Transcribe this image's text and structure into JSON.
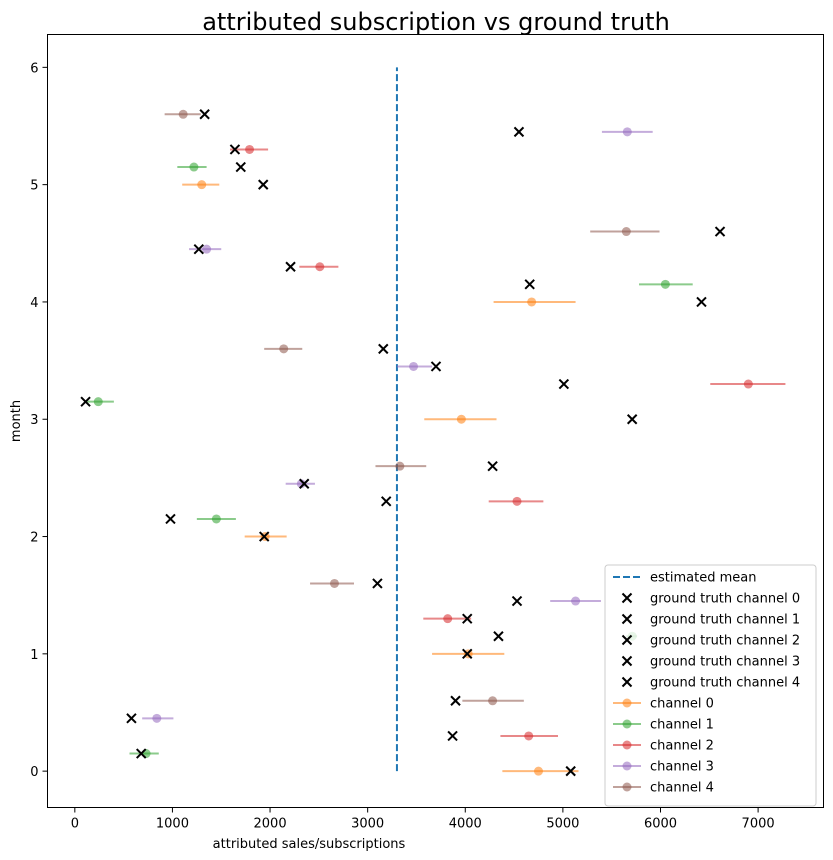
{
  "chart_data": {
    "type": "scatter",
    "title": "attributed subscription vs ground truth",
    "xlabel": "attributed sales/subscriptions",
    "ylabel": "month",
    "xlim": [
      -280,
      7670
    ],
    "ylim": [
      -0.31,
      6.28
    ],
    "xticks": [
      0,
      1000,
      2000,
      3000,
      4000,
      5000,
      6000,
      7000
    ],
    "yticks": [
      0,
      1,
      2,
      3,
      4,
      5,
      6
    ],
    "grid": false,
    "legend_position": "lower-right",
    "estimated_mean": {
      "name": "estimated mean",
      "x": 3300,
      "y": [
        0,
        6
      ],
      "color": "#1f77b4"
    },
    "colors": [
      "#ff7f0e",
      "#2ca02c",
      "#d62728",
      "#9467bd",
      "#8c564b"
    ],
    "ground_truth": [
      {
        "name": "ground truth channel 0",
        "points": [
          [
            5080,
            0
          ],
          [
            4020,
            1.0
          ],
          [
            1940,
            2.0
          ],
          [
            5710,
            3.0
          ],
          [
            6420,
            4.0
          ],
          [
            1930,
            5.0
          ]
        ]
      },
      {
        "name": "ground truth channel 1",
        "points": [
          [
            680,
            0.15
          ],
          [
            4340,
            1.15
          ],
          [
            980,
            2.15
          ],
          [
            110,
            3.15
          ],
          [
            4660,
            4.15
          ],
          [
            1700,
            5.15
          ]
        ]
      },
      {
        "name": "ground truth channel 2",
        "points": [
          [
            3870,
            0.3
          ],
          [
            4020,
            1.3
          ],
          [
            3190,
            2.3
          ],
          [
            5010,
            3.3
          ],
          [
            2210,
            4.3
          ],
          [
            1640,
            5.3
          ]
        ]
      },
      {
        "name": "ground truth channel 3",
        "points": [
          [
            580,
            0.45
          ],
          [
            4530,
            1.45
          ],
          [
            2350,
            2.45
          ],
          [
            3700,
            3.45
          ],
          [
            1270,
            4.45
          ],
          [
            4550,
            5.45
          ]
        ]
      },
      {
        "name": "ground truth channel 4",
        "points": [
          [
            3900,
            0.6
          ],
          [
            3100,
            1.6
          ],
          [
            4280,
            2.6
          ],
          [
            3160,
            3.6
          ],
          [
            6610,
            4.6
          ],
          [
            1330,
            5.6
          ]
        ]
      }
    ],
    "series": [
      {
        "name": "channel 0",
        "points": [
          [
            4750,
            0,
            4380,
            5160
          ],
          [
            4030,
            1.0,
            3660,
            4400
          ],
          [
            1950,
            2.0,
            1740,
            2170
          ],
          [
            3960,
            3.0,
            3580,
            4320
          ],
          [
            4680,
            4.0,
            4290,
            5130
          ],
          [
            1300,
            5.0,
            1100,
            1480
          ]
        ]
      },
      {
        "name": "channel 1",
        "points": [
          [
            730,
            0.15,
            560,
            860
          ],
          [
            5710,
            1.15,
            5650,
            5760
          ],
          [
            1450,
            2.15,
            1250,
            1650
          ],
          [
            240,
            3.15,
            120,
            400
          ],
          [
            6050,
            4.15,
            5780,
            6330
          ],
          [
            1220,
            5.15,
            1050,
            1350
          ]
        ]
      },
      {
        "name": "channel 2",
        "points": [
          [
            4650,
            0.3,
            4360,
            4950
          ],
          [
            3820,
            1.3,
            3570,
            4060
          ],
          [
            4530,
            2.3,
            4240,
            4800
          ],
          [
            6900,
            3.3,
            6510,
            7280
          ],
          [
            2510,
            4.3,
            2300,
            2700
          ],
          [
            1790,
            5.3,
            1590,
            1980
          ]
        ]
      },
      {
        "name": "channel 3",
        "points": [
          [
            840,
            0.45,
            690,
            1010
          ],
          [
            5130,
            1.45,
            4870,
            5390
          ],
          [
            2320,
            2.45,
            2160,
            2460
          ],
          [
            3470,
            3.45,
            3300,
            3660
          ],
          [
            1350,
            4.45,
            1170,
            1500
          ],
          [
            5660,
            5.45,
            5400,
            5920
          ]
        ]
      },
      {
        "name": "channel 4",
        "points": [
          [
            4280,
            0.6,
            3970,
            4600
          ],
          [
            2660,
            1.6,
            2410,
            2860
          ],
          [
            3330,
            2.6,
            3080,
            3600
          ],
          [
            2140,
            3.6,
            1940,
            2330
          ],
          [
            5650,
            4.6,
            5280,
            5990
          ],
          [
            1110,
            5.6,
            920,
            1290
          ]
        ]
      }
    ]
  }
}
